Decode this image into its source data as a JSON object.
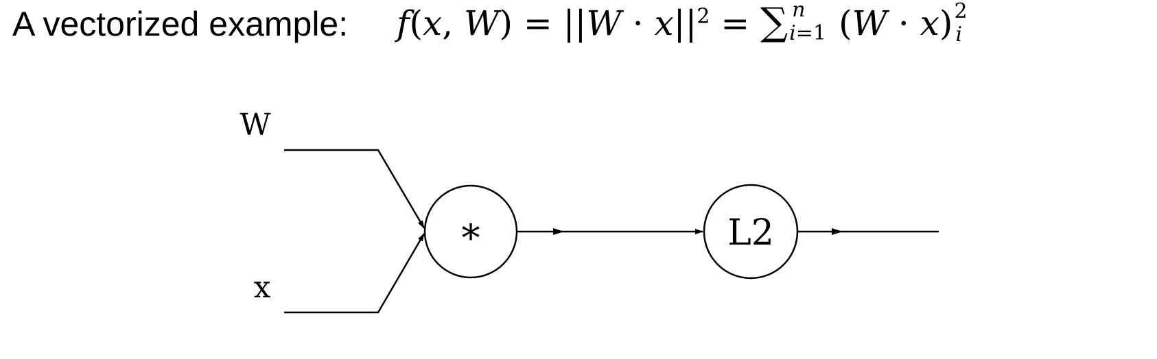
{
  "title": "A vectorized example:",
  "formula": {
    "lhs_f": "f",
    "lhs_open": "(",
    "lhs_x": "x",
    "lhs_comma": ", ",
    "lhs_W": "W",
    "lhs_close": ")",
    "eq1": " = ",
    "norm_open": "||",
    "norm_W": "W",
    "dot1": " · ",
    "norm_x": "x",
    "norm_close": "||",
    "norm_sup": "2",
    "eq2": " = ",
    "sum_symbol": "∑",
    "sum_upper": "n",
    "sum_lower_i": "i",
    "sum_lower_eq": "=1",
    "paren_open": "(",
    "paren_W": "W",
    "dot2": " · ",
    "paren_x": "x",
    "paren_close": ")",
    "tail_sup": "2",
    "tail_sub": "i"
  },
  "diagram": {
    "input_w_label": "W",
    "input_x_label": "x",
    "multiply_node_label": "*",
    "l2_node_label": "L2"
  }
}
